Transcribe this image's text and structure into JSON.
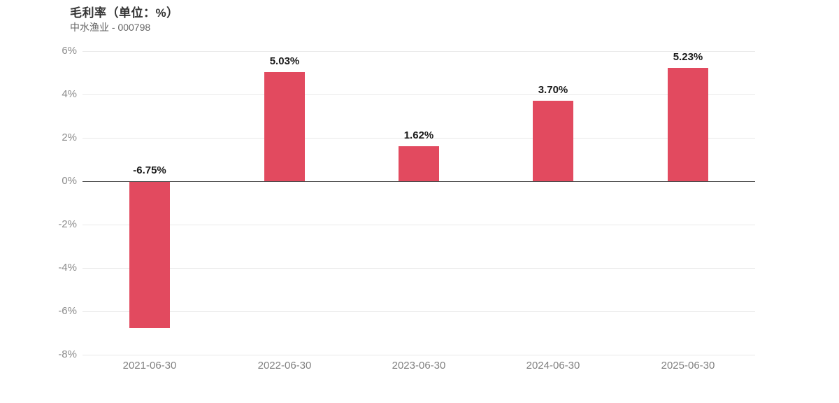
{
  "header": {
    "title": "毛利率（单位：%）",
    "subtitle": "中水渔业 - 000798"
  },
  "chart_data": {
    "type": "bar",
    "title": "毛利率（单位：%）",
    "subtitle": "中水渔业 - 000798",
    "categories": [
      "2021-06-30",
      "2022-06-30",
      "2023-06-30",
      "2024-06-30",
      "2025-06-30"
    ],
    "values": [
      -6.75,
      5.03,
      1.62,
      3.7,
      5.23
    ],
    "value_labels": [
      "-6.75%",
      "5.03%",
      "1.62%",
      "3.70%",
      "5.23%"
    ],
    "xlabel": "",
    "ylabel": "",
    "ylim": [
      -8,
      6
    ],
    "yticks": [
      6,
      4,
      2,
      0,
      -2,
      -4,
      -6,
      -8
    ],
    "ytick_labels": [
      "6%",
      "4%",
      "2%",
      "0%",
      "-2%",
      "-4%",
      "-6%",
      "-8%"
    ],
    "grid": true,
    "legend_position": "none",
    "colors": {
      "bar": "#e24a5f",
      "gridline": "#e9e9e9",
      "zero_line": "#4a4a4a",
      "axis_label": "#8c8c8c",
      "x_label": "#808080",
      "value_label": "#1a1a1a",
      "title": "#333333",
      "subtitle": "#666666",
      "background": "#ffffff"
    }
  }
}
